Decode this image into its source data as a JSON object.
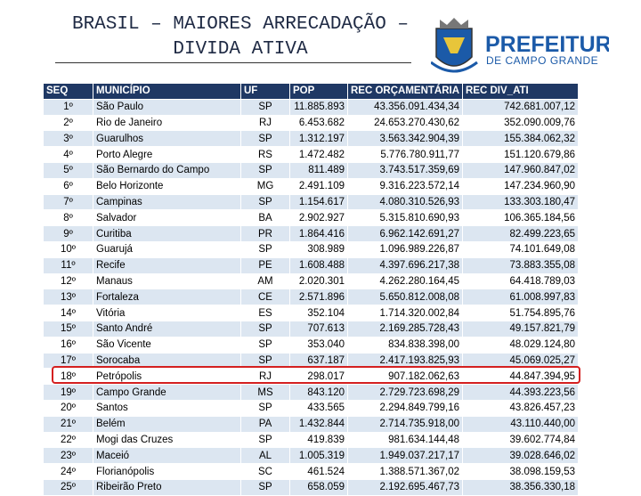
{
  "header": {
    "title_lines": [
      "BRASIL – MAIORES ARRECADAÇÃO –",
      "DIVIDA ATIVA"
    ],
    "logo": {
      "name": "PREFEITURA",
      "subtitle": "DE CAMPO GRANDE"
    }
  },
  "table": {
    "columns": [
      "SEQ",
      "MUNICÍPIO",
      "UF",
      "POP",
      "REC ORÇAMENTÁRIA",
      "REC DIV_ATI"
    ],
    "rows": [
      [
        "1º",
        "São Paulo",
        "SP",
        "11.885.893",
        "43.356.091.434,34",
        "742.681.007,12"
      ],
      [
        "2º",
        "Rio de Janeiro",
        "RJ",
        "6.453.682",
        "24.653.270.430,62",
        "352.090.009,76"
      ],
      [
        "3º",
        "Guarulhos",
        "SP",
        "1.312.197",
        "3.563.342.904,39",
        "155.384.062,32"
      ],
      [
        "4º",
        "Porto Alegre",
        "RS",
        "1.472.482",
        "5.776.780.911,77",
        "151.120.679,86"
      ],
      [
        "5º",
        "São Bernardo do Campo",
        "SP",
        "811.489",
        "3.743.517.359,69",
        "147.960.847,02"
      ],
      [
        "6º",
        "Belo Horizonte",
        "MG",
        "2.491.109",
        "9.316.223.572,14",
        "147.234.960,90"
      ],
      [
        "7º",
        "Campinas",
        "SP",
        "1.154.617",
        "4.080.310.526,93",
        "133.303.180,47"
      ],
      [
        "8º",
        "Salvador",
        "BA",
        "2.902.927",
        "5.315.810.690,93",
        "106.365.184,56"
      ],
      [
        "9º",
        "Curitiba",
        "PR",
        "1.864.416",
        "6.962.142.691,27",
        "82.499.223,65"
      ],
      [
        "10º",
        "Guarujá",
        "SP",
        "308.989",
        "1.096.989.226,87",
        "74.101.649,08"
      ],
      [
        "11º",
        "Recife",
        "PE",
        "1.608.488",
        "4.397.696.217,38",
        "73.883.355,08"
      ],
      [
        "12º",
        "Manaus",
        "AM",
        "2.020.301",
        "4.262.280.164,45",
        "64.418.789,03"
      ],
      [
        "13º",
        "Fortaleza",
        "CE",
        "2.571.896",
        "5.650.812.008,08",
        "61.008.997,83"
      ],
      [
        "14º",
        "Vitória",
        "ES",
        "352.104",
        "1.714.320.002,84",
        "51.754.895,76"
      ],
      [
        "15º",
        "Santo André",
        "SP",
        "707.613",
        "2.169.285.728,43",
        "49.157.821,79"
      ],
      [
        "16º",
        "São Vicente",
        "SP",
        "353.040",
        "834.838.398,00",
        "48.029.124,80"
      ],
      [
        "17º",
        "Sorocaba",
        "SP",
        "637.187",
        "2.417.193.825,93",
        "45.069.025,27"
      ],
      [
        "18º",
        "Petrópolis",
        "RJ",
        "298.017",
        "907.182.062,63",
        "44.847.394,95"
      ],
      [
        "19º",
        "Campo Grande",
        "MS",
        "843.120",
        "2.729.723.698,29",
        "44.393.223,56"
      ],
      [
        "20º",
        "Santos",
        "SP",
        "433.565",
        "2.294.849.799,16",
        "43.826.457,23"
      ],
      [
        "21º",
        "Belém",
        "PA",
        "1.432.844",
        "2.714.735.918,00",
        "43.110.440,00"
      ],
      [
        "22º",
        "Mogi das Cruzes",
        "SP",
        "419.839",
        "981.634.144,48",
        "39.602.774,84"
      ],
      [
        "23º",
        "Maceió",
        "AL",
        "1.005.319",
        "1.949.037.217,17",
        "39.028.646,02"
      ],
      [
        "24º",
        "Florianópolis",
        "SC",
        "461.524",
        "1.388.571.367,02",
        "38.098.159,53"
      ],
      [
        "25º",
        "Ribeirão Preto",
        "SP",
        "658.059",
        "2.192.695.467,73",
        "38.356.330,18"
      ]
    ]
  }
}
